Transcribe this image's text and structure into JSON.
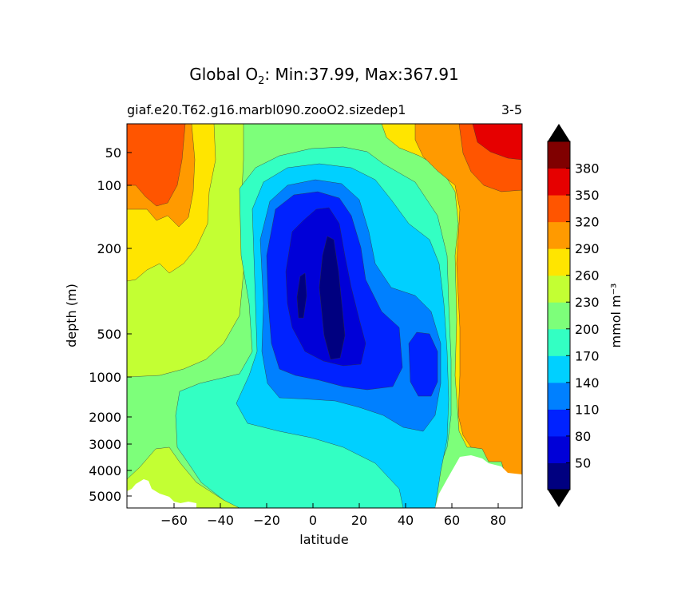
{
  "title_prefix": "Global O",
  "title_sub": "2",
  "title_suffix": ": Min:37.99, Max:367.91",
  "run_name": "giaf.e20.T62.g16.marbl090.zooO2.sizedep1",
  "run_range": "3-5",
  "chart_data": {
    "type": "contourf",
    "xlabel": "latitude",
    "ylabel": "depth (m)",
    "x_ticks": [
      "−60",
      "−40",
      "−20",
      "0",
      "20",
      "40",
      "60",
      "80"
    ],
    "y_ticks": [
      "50",
      "100",
      "200",
      "500",
      "1000",
      "2000",
      "3000",
      "4000",
      "5000"
    ],
    "xlim": [
      -80,
      90
    ],
    "ylim": [
      5600,
      20
    ],
    "colorbar_label": "mmol m⁻³",
    "colorbar_ticks": [
      "50",
      "80",
      "110",
      "140",
      "170",
      "200",
      "230",
      "260",
      "290",
      "320",
      "350",
      "380"
    ],
    "level_colors": [
      "#000080",
      "#0000d8",
      "#0022ff",
      "#0080ff",
      "#00d0ff",
      "#33ffc3",
      "#7dff7a",
      "#c3ff33",
      "#ffe500",
      "#ff9a00",
      "#ff5500",
      "#e60000",
      "#800000"
    ],
    "extend": "both",
    "extend_color": "#000000"
  }
}
